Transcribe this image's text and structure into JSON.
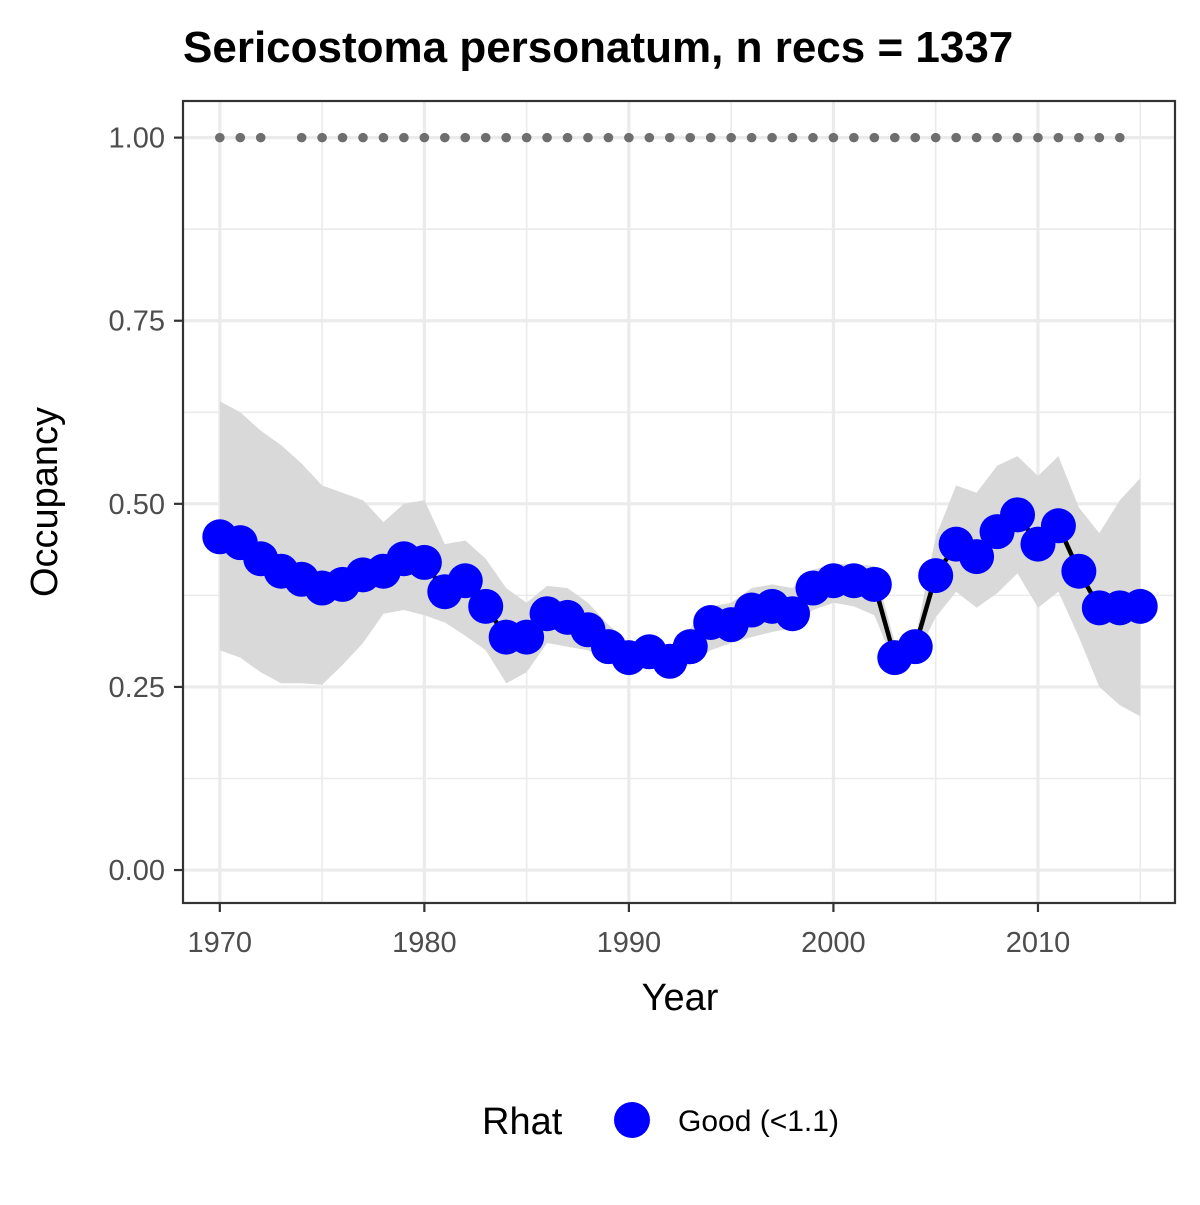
{
  "chart_data": {
    "type": "line",
    "title": "Sericostoma personatum, n recs = 1337",
    "xlabel": "Year",
    "ylabel": "Occupancy",
    "xlim": [
      1968.2,
      2016.7
    ],
    "ylim": [
      -0.045,
      1.05
    ],
    "x_ticks": [
      1970,
      1980,
      1990,
      2000,
      2010
    ],
    "x_tick_labels": [
      "1970",
      "1980",
      "1990",
      "2000",
      "2010"
    ],
    "x_minor_ticks": [
      1975,
      1985,
      1995,
      2005,
      2015
    ],
    "y_ticks": [
      0.0,
      0.25,
      0.5,
      0.75,
      1.0
    ],
    "y_tick_labels": [
      "0.00",
      "0.25",
      "0.50",
      "0.75",
      "1.00"
    ],
    "y_minor_ticks": [
      0.125,
      0.375,
      0.625,
      0.875
    ],
    "grid": true,
    "legend": {
      "position": "bottom",
      "title": "Rhat",
      "entries": [
        {
          "label": "Good (<1.1)",
          "color": "#0000ff"
        }
      ]
    },
    "colors": {
      "points": "#0000ff",
      "line": "#000000",
      "ribbon": "#d9d9d9",
      "record_dots": "#6e6e6e",
      "grid": "#ebebeb",
      "panel_border": "#333333",
      "tick_text": "#4d4d4d"
    },
    "series": [
      {
        "years": [
          1970,
          1971,
          1972,
          1973,
          1974,
          1975,
          1976,
          1977,
          1978,
          1979,
          1980,
          1981,
          1982,
          1983,
          1984,
          1985,
          1986,
          1987,
          1988,
          1989,
          1990,
          1991,
          1992,
          1993,
          1994,
          1995,
          1996,
          1997,
          1998,
          1999,
          2000,
          2001,
          2002,
          2003,
          2004,
          2005,
          2006,
          2007,
          2008,
          2009,
          2010,
          2011,
          2012,
          2013,
          2014,
          2015
        ],
        "occupancy": [
          0.455,
          0.447,
          0.425,
          0.408,
          0.397,
          0.385,
          0.39,
          0.403,
          0.408,
          0.425,
          0.42,
          0.38,
          0.395,
          0.36,
          0.318,
          0.318,
          0.35,
          0.345,
          0.328,
          0.305,
          0.29,
          0.298,
          0.285,
          0.305,
          0.338,
          0.335,
          0.355,
          0.36,
          0.35,
          0.385,
          0.395,
          0.395,
          0.39,
          0.29,
          0.305,
          0.402,
          0.445,
          0.428,
          0.462,
          0.485,
          0.445,
          0.47,
          0.408,
          0.358,
          0.358,
          0.36
        ],
        "lower": [
          0.3,
          0.29,
          0.27,
          0.255,
          0.255,
          0.253,
          0.28,
          0.31,
          0.35,
          0.355,
          0.348,
          0.338,
          0.32,
          0.3,
          0.255,
          0.27,
          0.31,
          0.305,
          0.3,
          0.285,
          0.275,
          0.28,
          0.27,
          0.28,
          0.3,
          0.31,
          0.318,
          0.325,
          0.33,
          0.355,
          0.365,
          0.36,
          0.348,
          0.28,
          0.29,
          0.345,
          0.38,
          0.358,
          0.378,
          0.405,
          0.358,
          0.38,
          0.318,
          0.25,
          0.225,
          0.21
        ],
        "upper": [
          0.64,
          0.625,
          0.6,
          0.58,
          0.555,
          0.525,
          0.515,
          0.505,
          0.475,
          0.5,
          0.505,
          0.445,
          0.45,
          0.425,
          0.385,
          0.365,
          0.388,
          0.385,
          0.365,
          0.335,
          0.31,
          0.315,
          0.305,
          0.33,
          0.36,
          0.365,
          0.385,
          0.39,
          0.385,
          0.41,
          0.418,
          0.418,
          0.415,
          0.31,
          0.315,
          0.455,
          0.525,
          0.515,
          0.552,
          0.565,
          0.538,
          0.565,
          0.495,
          0.46,
          0.505,
          0.535
        ]
      }
    ],
    "record_years": [
      1970,
      1971,
      1972,
      1974,
      1975,
      1976,
      1977,
      1978,
      1979,
      1980,
      1981,
      1982,
      1983,
      1984,
      1985,
      1986,
      1987,
      1988,
      1989,
      1990,
      1991,
      1992,
      1993,
      1994,
      1995,
      1996,
      1997,
      1998,
      1999,
      2000,
      2001,
      2002,
      2003,
      2004,
      2005,
      2006,
      2007,
      2008,
      2009,
      2010,
      2011,
      2012,
      2013,
      2014
    ]
  }
}
